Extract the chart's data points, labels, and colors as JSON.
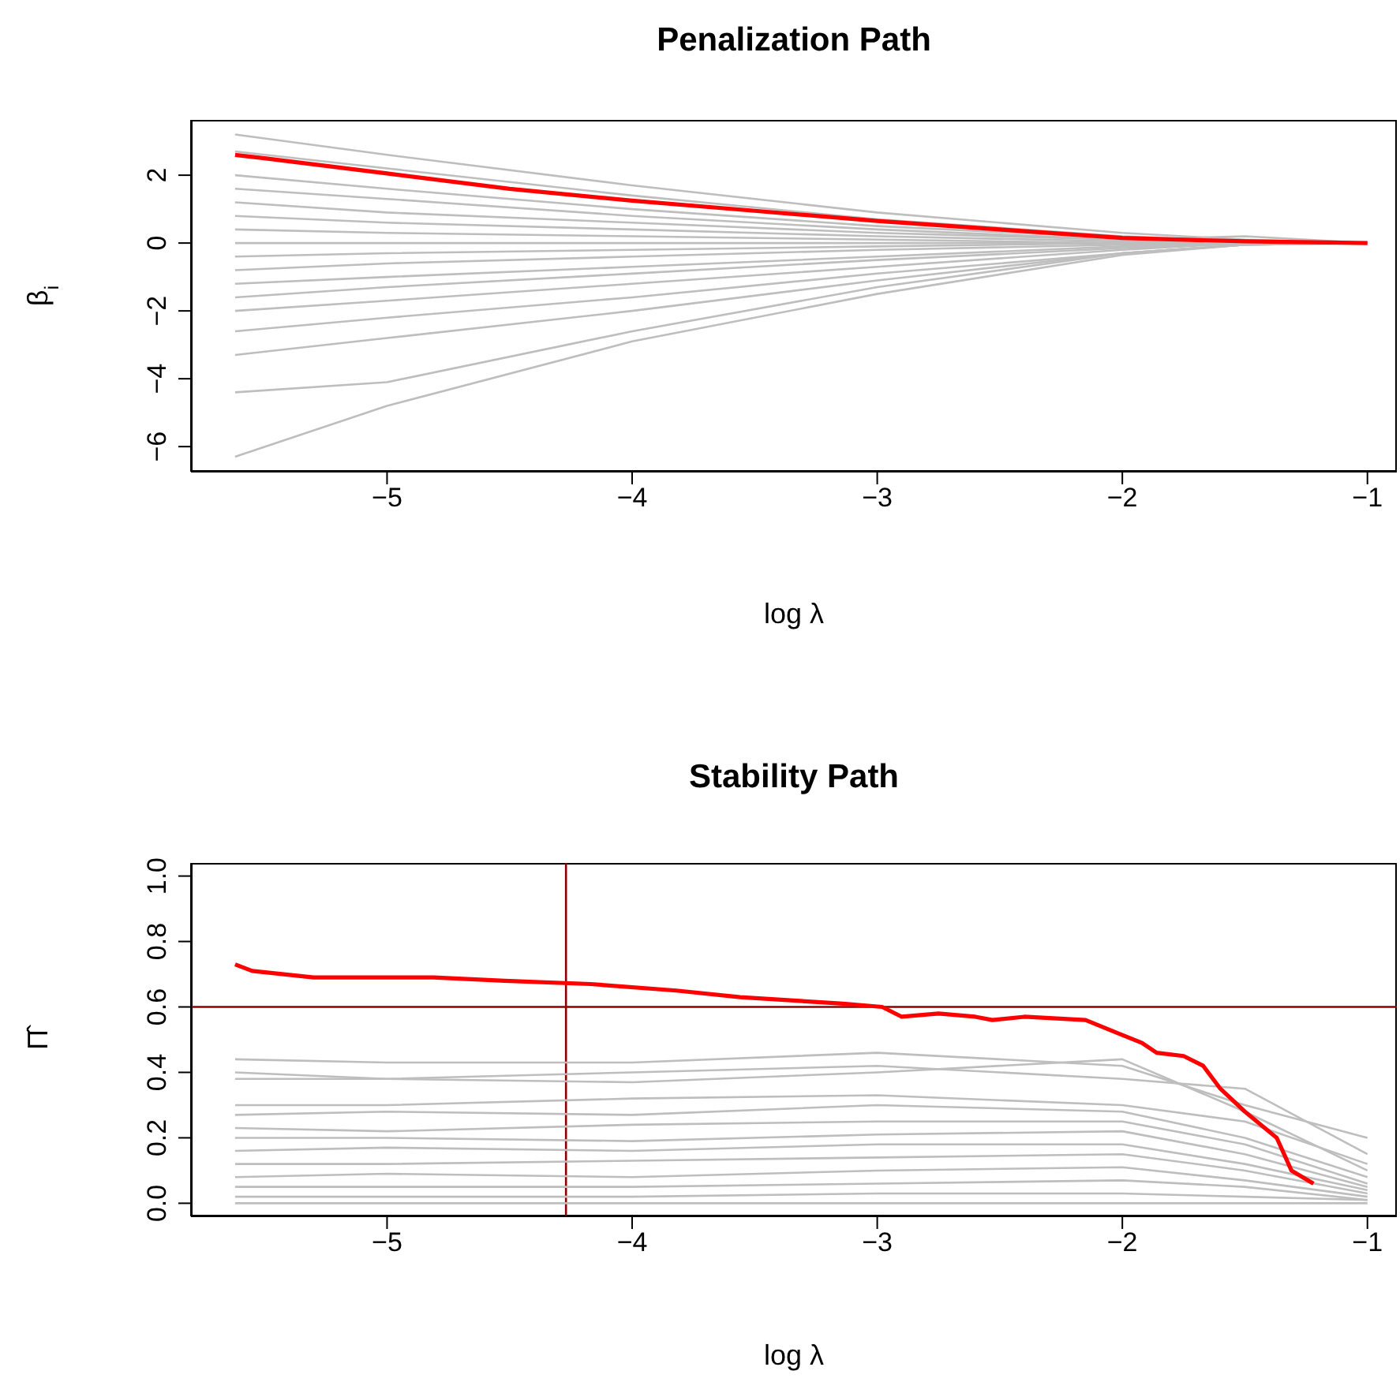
{
  "chart_data": [
    {
      "type": "line",
      "title": "Penalization Path",
      "xlabel": "log λ",
      "ylabel": "β$_{i}$",
      "xlim": [
        -5.8,
        -0.88
      ],
      "ylim": [
        -6.74,
        3.63
      ],
      "xticks": [
        {
          "value": -5,
          "label": "−5"
        },
        {
          "value": -4,
          "label": "−4"
        },
        {
          "value": -3,
          "label": "−3"
        },
        {
          "value": -2,
          "label": "−2"
        },
        {
          "value": -1,
          "label": "−1"
        }
      ],
      "yticks": [
        {
          "value": -6,
          "label": "−6"
        },
        {
          "value": -4,
          "label": "−4"
        },
        {
          "value": -2,
          "label": "−2"
        },
        0,
        2
      ],
      "series": [
        {
          "color": "#bebebe",
          "x": [
            -5.62,
            -5,
            -4,
            -3,
            -2,
            -1.5,
            -1
          ],
          "values": [
            3.2,
            2.6,
            1.7,
            0.9,
            0.3,
            0.1,
            0
          ]
        },
        {
          "color": "#bebebe",
          "x": [
            -5.62,
            -5,
            -4,
            -3,
            -2,
            -1.5,
            -1
          ],
          "values": [
            2.7,
            2.2,
            1.4,
            0.7,
            0.2,
            0.05,
            0
          ]
        },
        {
          "color": "#bebebe",
          "x": [
            -5.62,
            -5,
            -4,
            -3,
            -2,
            -1.5,
            -1
          ],
          "values": [
            2.0,
            1.6,
            1.0,
            0.5,
            0.15,
            0.05,
            0
          ]
        },
        {
          "color": "#bebebe",
          "x": [
            -5.62,
            -5,
            -4,
            -3,
            -2,
            -1.5,
            -1
          ],
          "values": [
            1.6,
            1.3,
            0.8,
            0.4,
            0.1,
            0,
            0
          ]
        },
        {
          "color": "#bebebe",
          "x": [
            -5.62,
            -5,
            -4,
            -3,
            -2,
            -1.5,
            -1
          ],
          "values": [
            1.2,
            0.9,
            0.6,
            0.3,
            0.1,
            0.2,
            0
          ]
        },
        {
          "color": "#bebebe",
          "x": [
            -5.62,
            -5,
            -4,
            -3,
            -2,
            -1.5,
            -1
          ],
          "values": [
            0.8,
            0.6,
            0.4,
            0.2,
            0.05,
            0,
            0
          ]
        },
        {
          "color": "#bebebe",
          "x": [
            -5.62,
            -5,
            -4,
            -3,
            -2,
            -1.5,
            -1
          ],
          "values": [
            0.4,
            0.3,
            0.2,
            0.1,
            0,
            0,
            0
          ]
        },
        {
          "color": "#bebebe",
          "x": [
            -5.62,
            -5,
            -4,
            -3,
            -2,
            -1.5,
            -1
          ],
          "values": [
            0,
            0,
            0,
            0,
            0,
            0,
            0
          ]
        },
        {
          "color": "#bebebe",
          "x": [
            -5.62,
            -5,
            -4,
            -3,
            -2,
            -1.5,
            -1
          ],
          "values": [
            -0.4,
            -0.3,
            -0.2,
            -0.1,
            0,
            0,
            0
          ]
        },
        {
          "color": "#bebebe",
          "x": [
            -5.62,
            -5,
            -4,
            -3,
            -2,
            -1.5,
            -1
          ],
          "values": [
            -0.8,
            -0.6,
            -0.4,
            -0.2,
            -0.05,
            0,
            0
          ]
        },
        {
          "color": "#bebebe",
          "x": [
            -5.62,
            -5,
            -4,
            -3,
            -2,
            -1.5,
            -1
          ],
          "values": [
            -1.2,
            -1.0,
            -0.7,
            -0.4,
            -0.1,
            0,
            0
          ]
        },
        {
          "color": "#bebebe",
          "x": [
            -5.62,
            -5,
            -4,
            -3,
            -2,
            -1.5,
            -1
          ],
          "values": [
            -1.6,
            -1.3,
            -0.9,
            -0.5,
            -0.15,
            0,
            0
          ]
        },
        {
          "color": "#bebebe",
          "x": [
            -5.62,
            -5,
            -4,
            -3,
            -2,
            -1.5,
            -1
          ],
          "values": [
            -2.0,
            -1.7,
            -1.2,
            -0.7,
            -0.2,
            0,
            0
          ]
        },
        {
          "color": "#bebebe",
          "x": [
            -5.62,
            -5,
            -4,
            -3,
            -2,
            -1.5,
            -1
          ],
          "values": [
            -2.6,
            -2.2,
            -1.6,
            -0.9,
            -0.3,
            -0.05,
            0
          ]
        },
        {
          "color": "#bebebe",
          "x": [
            -5.62,
            -5,
            -4,
            -3,
            -2,
            -1.5,
            -1
          ],
          "values": [
            -3.3,
            -2.8,
            -2.0,
            -1.1,
            -0.3,
            -0.05,
            0
          ]
        },
        {
          "color": "#bebebe",
          "x": [
            -5.62,
            -5,
            -4,
            -3,
            -2,
            -1.5,
            -1
          ],
          "values": [
            -4.4,
            -4.1,
            -2.6,
            -1.3,
            -0.3,
            -0.05,
            0
          ]
        },
        {
          "color": "#bebebe",
          "x": [
            -5.62,
            -5,
            -4,
            -3,
            -2,
            -1.5,
            -1
          ],
          "values": [
            -6.3,
            -4.8,
            -2.9,
            -1.5,
            -0.35,
            -0.05,
            0
          ]
        },
        {
          "color": "#ff0000",
          "x": [
            -5.62,
            -5.5,
            -5,
            -4.5,
            -4,
            -3.5,
            -3,
            -2.5,
            -2,
            -1.5,
            -1
          ],
          "values": [
            2.6,
            2.5,
            2.05,
            1.6,
            1.25,
            0.95,
            0.65,
            0.4,
            0.15,
            0.05,
            0
          ]
        }
      ]
    },
    {
      "type": "line",
      "title": "Stability Path",
      "xlabel": "log λ",
      "ylabel": "Π̂",
      "xlim": [
        -5.8,
        -0.88
      ],
      "ylim": [
        -0.04,
        1.04
      ],
      "xticks": [
        {
          "value": -5,
          "label": "−5"
        },
        {
          "value": -4,
          "label": "−4"
        },
        {
          "value": -3,
          "label": "−3"
        },
        {
          "value": -2,
          "label": "−2"
        },
        {
          "value": -1,
          "label": "−1"
        }
      ],
      "yticks": [
        {
          "value": 0,
          "label": "0.0"
        },
        {
          "value": 0.2,
          "label": "0.2"
        },
        {
          "value": 0.4,
          "label": "0.4"
        },
        {
          "value": 0.6,
          "label": "0.6"
        },
        {
          "value": 0.8,
          "label": "0.8"
        },
        {
          "value": 1,
          "label": "1.0"
        }
      ],
      "ref_lines": [
        {
          "axis": "y",
          "value": 0.6,
          "color": "#8b0000"
        },
        {
          "axis": "x",
          "value": -4.27,
          "color": "#8b0000"
        }
      ],
      "series": [
        {
          "color": "#bebebe",
          "x": [
            -5.62,
            -5,
            -4,
            -3,
            -2,
            -1.5,
            -1
          ],
          "values": [
            0.44,
            0.43,
            0.43,
            0.46,
            0.42,
            0.3,
            0.2
          ]
        },
        {
          "color": "#bebebe",
          "x": [
            -5.62,
            -5,
            -4,
            -3,
            -2,
            -1.5,
            -1
          ],
          "values": [
            0.4,
            0.38,
            0.4,
            0.42,
            0.38,
            0.35,
            0.15
          ]
        },
        {
          "color": "#bebebe",
          "x": [
            -5.62,
            -5,
            -4,
            -3,
            -2,
            -1.5,
            -1
          ],
          "values": [
            0.38,
            0.38,
            0.37,
            0.4,
            0.44,
            0.28,
            0.1
          ]
        },
        {
          "color": "#bebebe",
          "x": [
            -5.62,
            -5,
            -4,
            -3,
            -2,
            -1.5,
            -1
          ],
          "values": [
            0.3,
            0.3,
            0.32,
            0.33,
            0.3,
            0.25,
            0.12
          ]
        },
        {
          "color": "#bebebe",
          "x": [
            -5.62,
            -5,
            -4,
            -3,
            -2,
            -1.5,
            -1
          ],
          "values": [
            0.27,
            0.28,
            0.27,
            0.3,
            0.28,
            0.2,
            0.08
          ]
        },
        {
          "color": "#bebebe",
          "x": [
            -5.62,
            -5,
            -4,
            -3,
            -2,
            -1.5,
            -1
          ],
          "values": [
            0.23,
            0.22,
            0.24,
            0.25,
            0.25,
            0.18,
            0.06
          ]
        },
        {
          "color": "#bebebe",
          "x": [
            -5.62,
            -5,
            -4,
            -3,
            -2,
            -1.5,
            -1
          ],
          "values": [
            0.2,
            0.2,
            0.19,
            0.21,
            0.22,
            0.15,
            0.05
          ]
        },
        {
          "color": "#bebebe",
          "x": [
            -5.62,
            -5,
            -4,
            -3,
            -2,
            -1.5,
            -1
          ],
          "values": [
            0.16,
            0.17,
            0.16,
            0.18,
            0.18,
            0.12,
            0.04
          ]
        },
        {
          "color": "#bebebe",
          "x": [
            -5.62,
            -5,
            -4,
            -3,
            -2,
            -1.5,
            -1
          ],
          "values": [
            0.12,
            0.12,
            0.13,
            0.14,
            0.15,
            0.1,
            0.03
          ]
        },
        {
          "color": "#bebebe",
          "x": [
            -5.62,
            -5,
            -4,
            -3,
            -2,
            -1.5,
            -1
          ],
          "values": [
            0.08,
            0.09,
            0.08,
            0.1,
            0.11,
            0.07,
            0.02
          ]
        },
        {
          "color": "#bebebe",
          "x": [
            -5.62,
            -5,
            -4,
            -3,
            -2,
            -1.5,
            -1
          ],
          "values": [
            0.05,
            0.05,
            0.05,
            0.06,
            0.07,
            0.05,
            0.01
          ]
        },
        {
          "color": "#bebebe",
          "x": [
            -5.62,
            -5,
            -4,
            -3,
            -2,
            -1.5,
            -1
          ],
          "values": [
            0.02,
            0.02,
            0.02,
            0.03,
            0.03,
            0.02,
            0.01
          ]
        },
        {
          "color": "#bebebe",
          "x": [
            -5.62,
            -5,
            -4,
            -3,
            -2,
            -1.5,
            -1
          ],
          "values": [
            0,
            0,
            0,
            0,
            0,
            0,
            0
          ]
        },
        {
          "color": "#ff0000",
          "x": [
            -5.62,
            -5.55,
            -5.3,
            -4.81,
            -4.52,
            -4.17,
            -3.82,
            -3.56,
            -3.14,
            -2.98,
            -2.9,
            -2.75,
            -2.6,
            -2.53,
            -2.4,
            -2.15,
            -2.02,
            -1.92,
            -1.86,
            -1.75,
            -1.67,
            -1.6,
            -1.5,
            -1.37,
            -1.31,
            -1.22
          ],
          "values": [
            0.73,
            0.71,
            0.69,
            0.69,
            0.68,
            0.67,
            0.65,
            0.63,
            0.61,
            0.6,
            0.57,
            0.58,
            0.57,
            0.56,
            0.57,
            0.56,
            0.52,
            0.49,
            0.46,
            0.45,
            0.42,
            0.35,
            0.28,
            0.2,
            0.1,
            0.06
          ]
        }
      ]
    }
  ]
}
